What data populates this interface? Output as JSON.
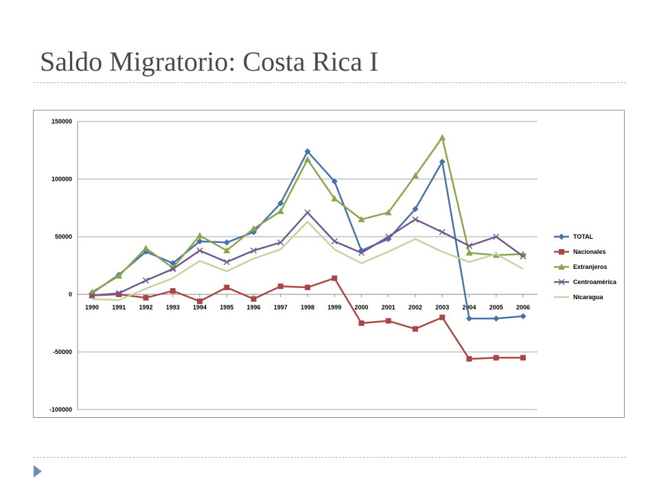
{
  "slide": {
    "title": "Saldo Migratorio: Costa Rica I"
  },
  "chart_data": {
    "type": "line",
    "title": "",
    "xlabel": "",
    "ylabel": "",
    "ylim": [
      -100000,
      150000
    ],
    "y_ticks": [
      150000,
      100000,
      50000,
      0,
      -50000,
      -100000
    ],
    "y_tick_labels": [
      "150000",
      "100000",
      "50000",
      "0",
      "-50000",
      "-100000"
    ],
    "categories": [
      "1990",
      "1991",
      "1992",
      "1993",
      "1994",
      "1995",
      "1996",
      "1997",
      "1998",
      "1999",
      "2000",
      "2001",
      "2002",
      "2003",
      "2004",
      "2005",
      "2006"
    ],
    "grid": true,
    "legend_position": "right",
    "series": [
      {
        "name": "TOTAL",
        "color": "#4572a7",
        "marker": "diamond",
        "values": [
          1000,
          17000,
          37000,
          27000,
          46000,
          45000,
          54000,
          79000,
          124000,
          98000,
          38000,
          48000,
          74000,
          115000,
          -21000,
          -21000,
          -19000
        ]
      },
      {
        "name": "Nacionales",
        "color": "#aa4643",
        "marker": "square",
        "values": [
          -1000,
          0,
          -3000,
          3000,
          -6000,
          6000,
          -4000,
          7000,
          6000,
          14000,
          -25000,
          -23000,
          -30000,
          -20000,
          -56000,
          -55000,
          -55000
        ]
      },
      {
        "name": "Extranjeros",
        "color": "#89a54e",
        "marker": "triangle",
        "values": [
          2000,
          16000,
          40000,
          23000,
          51000,
          38000,
          57000,
          72000,
          117000,
          83000,
          65000,
          71000,
          103000,
          136000,
          36000,
          34000,
          35000
        ]
      },
      {
        "name": "Centroamérica",
        "color": "#71588f",
        "marker": "x",
        "values": [
          -1000,
          1000,
          12000,
          22000,
          38000,
          28000,
          38000,
          45000,
          71000,
          46000,
          36000,
          50000,
          65000,
          54000,
          42000,
          50000,
          33000
        ]
      },
      {
        "name": "Nicaragua",
        "color": "#c4d4a1",
        "marker": "none",
        "values": [
          -4000,
          -5000,
          5000,
          14000,
          29000,
          20000,
          31000,
          39000,
          63000,
          39000,
          27000,
          37000,
          48000,
          37000,
          28000,
          35000,
          22000
        ]
      }
    ]
  }
}
